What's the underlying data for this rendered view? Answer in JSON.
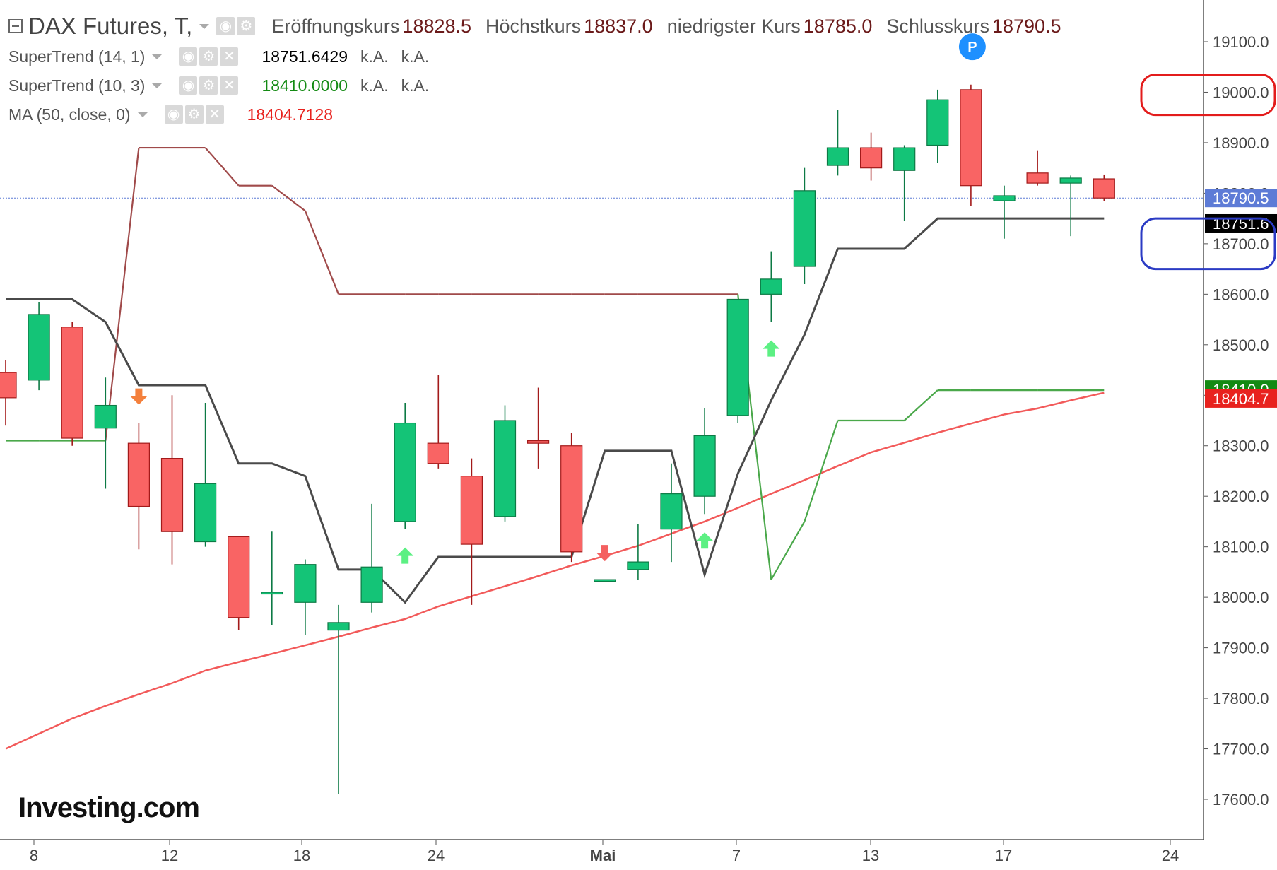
{
  "header": {
    "title": "DAX Futures, T,",
    "ohlc": [
      {
        "label": "Eröffnungskurs",
        "value": "18828.5"
      },
      {
        "label": "Höchstkurs",
        "value": "18837.0"
      },
      {
        "label": "niedrigster Kurs",
        "value": "18785.0"
      },
      {
        "label": "Schlusskurs",
        "value": "18790.5"
      }
    ]
  },
  "indicators": [
    {
      "name": "SuperTrend (14, 1)",
      "value": "18751.6429",
      "value_color": "#000000",
      "na1": "k.A.",
      "na2": "k.A."
    },
    {
      "name": "SuperTrend (10, 3)",
      "value": "18410.0000",
      "value_color": "#138a13",
      "na1": "k.A.",
      "na2": "k.A."
    },
    {
      "name": "MA (50, close, 0)",
      "value": "18404.7128",
      "value_color": "#e8221e"
    }
  ],
  "logo": "Investing.com",
  "event_marker": "P",
  "colors": {
    "up": "#14c477",
    "down": "#f96464",
    "wick_up": "#0d7a45",
    "wick_down": "#a31a1a",
    "supertrend_14_1": "#4a4a4a",
    "supertrend_10_3_up": "#4aa84a",
    "supertrend_10_3_down": "#a04a4a",
    "ma": "#f25a5a",
    "price_line": "#5d7bd6",
    "signal_up": "#5cf083",
    "signal_down": "#f46060",
    "signal_down_orange": "#f4803c",
    "highlight_red": "#e31c1c",
    "highlight_blue": "#2b3bc4"
  },
  "chart_data": {
    "type": "candlestick",
    "title": "DAX Futures, T,",
    "x_ticks": [
      "8",
      "12",
      "18",
      "24",
      "Mai",
      "7",
      "13",
      "17",
      "24"
    ],
    "y_ticks": [
      "17600.0",
      "17700.0",
      "17800.0",
      "17900.0",
      "18000.0",
      "18100.0",
      "18200.0",
      "18300.0",
      "18400.0",
      "18500.0",
      "18600.0",
      "18700.0",
      "18800.0",
      "18900.0",
      "19000.0",
      "19100.0"
    ],
    "ylim": [
      17528,
      19178
    ],
    "candles": [
      {
        "o": 18445,
        "h": 18470,
        "l": 18340,
        "c": 18395
      },
      {
        "o": 18430,
        "h": 18585,
        "l": 18410,
        "c": 18560
      },
      {
        "o": 18535,
        "h": 18545,
        "l": 18300,
        "c": 18315
      },
      {
        "o": 18335,
        "h": 18435,
        "l": 18215,
        "c": 18380
      },
      {
        "o": 18305,
        "h": 18345,
        "l": 18095,
        "c": 18180
      },
      {
        "o": 18275,
        "h": 18400,
        "l": 18065,
        "c": 18130
      },
      {
        "o": 18110,
        "h": 18385,
        "l": 18100,
        "c": 18225
      },
      {
        "o": 18120,
        "h": 18120,
        "l": 17935,
        "c": 17960
      },
      {
        "o": 18010,
        "h": 18130,
        "l": 17945,
        "c": 18010
      },
      {
        "o": 17990,
        "h": 18075,
        "l": 17925,
        "c": 18065
      },
      {
        "o": 17935,
        "h": 17985,
        "l": 17610,
        "c": 17950
      },
      {
        "o": 17990,
        "h": 18185,
        "l": 17970,
        "c": 18060
      },
      {
        "o": 18150,
        "h": 18385,
        "l": 18135,
        "c": 18345
      },
      {
        "o": 18305,
        "h": 18440,
        "l": 18255,
        "c": 18265
      },
      {
        "o": 18240,
        "h": 18275,
        "l": 17985,
        "c": 18105
      },
      {
        "o": 18160,
        "h": 18380,
        "l": 18150,
        "c": 18350
      },
      {
        "o": 18310,
        "h": 18415,
        "l": 18255,
        "c": 18305
      },
      {
        "o": 18300,
        "h": 18325,
        "l": 18070,
        "c": 18090
      },
      {
        "o": 18035,
        "h": 18035,
        "l": 18035,
        "c": 18035
      },
      {
        "o": 18055,
        "h": 18145,
        "l": 18035,
        "c": 18070
      },
      {
        "o": 18135,
        "h": 18265,
        "l": 18070,
        "c": 18205
      },
      {
        "o": 18200,
        "h": 18375,
        "l": 18165,
        "c": 18320
      },
      {
        "o": 18360,
        "h": 18590,
        "l": 18345,
        "c": 18590
      },
      {
        "o": 18600,
        "h": 18685,
        "l": 18545,
        "c": 18630
      },
      {
        "o": 18655,
        "h": 18850,
        "l": 18620,
        "c": 18805
      },
      {
        "o": 18855,
        "h": 18965,
        "l": 18835,
        "c": 18890
      },
      {
        "o": 18890,
        "h": 18920,
        "l": 18825,
        "c": 18850
      },
      {
        "o": 18845,
        "h": 18895,
        "l": 18745,
        "c": 18890
      },
      {
        "o": 18895,
        "h": 19005,
        "l": 18860,
        "c": 18985
      },
      {
        "o": 19005,
        "h": 19015,
        "l": 18775,
        "c": 18815
      },
      {
        "o": 18785,
        "h": 18815,
        "l": 18710,
        "c": 18795
      },
      {
        "o": 18840,
        "h": 18885,
        "l": 18815,
        "c": 18820
      },
      {
        "o": 18820,
        "h": 18835,
        "l": 18715,
        "c": 18830
      },
      {
        "o": 18828.5,
        "h": 18837.0,
        "l": 18785.0,
        "c": 18790.5
      }
    ],
    "series": [
      {
        "name": "SuperTrend (14, 1)",
        "values": [
          18590,
          18590,
          18590,
          18545,
          18420,
          18420,
          18420,
          18265,
          18265,
          18240,
          18055,
          18055,
          17990,
          18080,
          18080,
          18080,
          18080,
          18080,
          18290,
          18290,
          18290,
          18045,
          18245,
          18390,
          18520,
          18690,
          18690,
          18690,
          18750,
          18750,
          18750,
          18750,
          18750,
          18750
        ]
      },
      {
        "name": "SuperTrend (10, 3)",
        "values": [
          18310,
          18310,
          18310,
          18310,
          18890,
          18890,
          18890,
          18815,
          18815,
          18765,
          18600,
          18600,
          18600,
          18600,
          18600,
          18600,
          18600,
          18600,
          18600,
          18600,
          18600,
          18600,
          18600,
          18035,
          18150,
          18350,
          18350,
          18350,
          18410,
          18410,
          18410,
          18410,
          18410,
          18410
        ],
        "trend": [
          "up",
          "up",
          "up",
          "up",
          "down",
          "down",
          "down",
          "down",
          "down",
          "down",
          "down",
          "down",
          "down",
          "down",
          "down",
          "down",
          "down",
          "down",
          "down",
          "down",
          "down",
          "down",
          "down",
          "up",
          "up",
          "up",
          "up",
          "up",
          "up",
          "up",
          "up",
          "up",
          "up",
          "up"
        ]
      },
      {
        "name": "MA (50, close, 0)",
        "values": [
          17700,
          17730,
          17760,
          17785,
          17808,
          17830,
          17855,
          17872,
          17888,
          17905,
          17922,
          17940,
          17957,
          17982,
          18002,
          18022,
          18042,
          18063,
          18082,
          18102,
          18126,
          18150,
          18177,
          18205,
          18232,
          18260,
          18287,
          18306,
          18326,
          18344,
          18362,
          18374,
          18390,
          18405
        ]
      }
    ],
    "price_labels": [
      {
        "value": 18790.5,
        "text": "18790.5",
        "bg": "#5d7bd6",
        "fg": "#ffffff"
      },
      {
        "value": 18751.6,
        "text": "18751.6",
        "bg": "#000000",
        "fg": "#ffffff"
      },
      {
        "value": 18410.0,
        "text": "18410.0",
        "bg": "#138a13",
        "fg": "#ffffff"
      },
      {
        "value": 18404.7,
        "text": "18404.7",
        "bg": "#e8221e",
        "fg": "#ffffff"
      }
    ],
    "signals": [
      {
        "index": 4,
        "dir": "down",
        "color": "#f4803c"
      },
      {
        "index": 12,
        "dir": "up"
      },
      {
        "index": 18,
        "dir": "down"
      },
      {
        "index": 21,
        "dir": "up"
      },
      {
        "index": 23,
        "dir": "up"
      }
    ],
    "highlights": [
      {
        "color": "#e31c1c",
        "y1": 19035,
        "y2": 18955
      },
      {
        "color": "#2b3bc4",
        "y1": 18750,
        "y2": 18650
      }
    ]
  }
}
